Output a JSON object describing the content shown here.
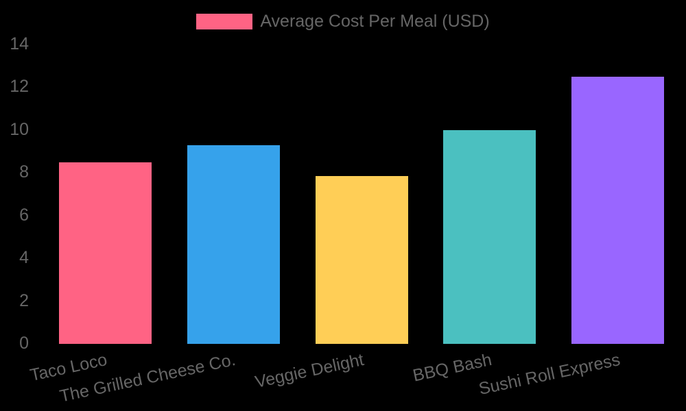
{
  "chart_data": {
    "type": "bar",
    "title": "",
    "categories": [
      "Taco Loco",
      "The Grilled Cheese Co.",
      "Veggie Delight",
      "BBQ Bash",
      "Sushi Roll Express"
    ],
    "series": [
      {
        "name": "Average Cost Per Meal (USD)",
        "values": [
          8.5,
          9.3,
          7.85,
          10,
          12.5
        ]
      }
    ],
    "bar_colors": [
      "#FF6384",
      "#36A2EB",
      "#FFCE56",
      "#4BC0C0",
      "#9966FF"
    ],
    "y_ticks": [
      "0",
      "2",
      "4",
      "6",
      "8",
      "10",
      "12",
      "14"
    ],
    "y_tick_values": [
      0,
      2,
      4,
      6,
      8,
      10,
      12,
      14
    ],
    "ylim": [
      0,
      14
    ],
    "xlabel": "",
    "ylabel": "",
    "grid": false,
    "legend_position": "top",
    "background_color": "#000000",
    "text_color": "#666666",
    "legend": {
      "label": "Average Cost Per Meal (USD)",
      "swatch_color": "#FF6384"
    }
  }
}
